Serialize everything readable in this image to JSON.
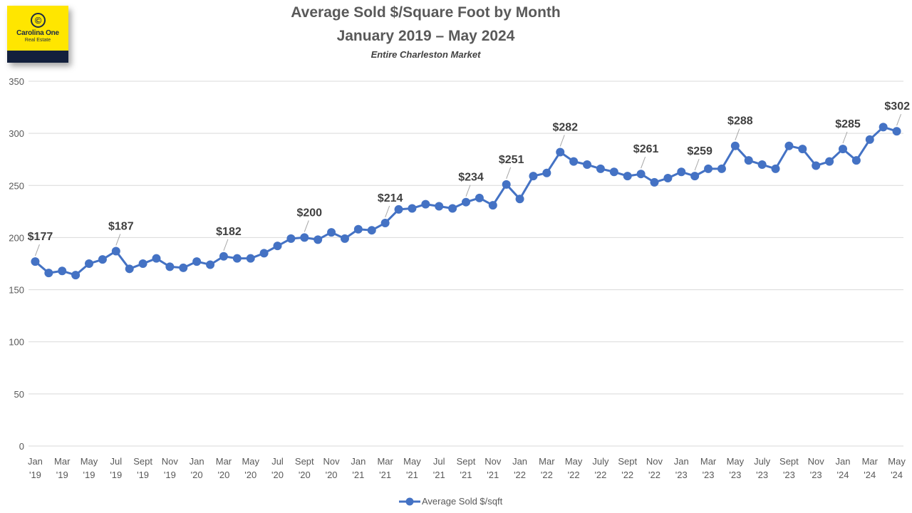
{
  "header": {
    "title_line1": "Average Sold $/Square Foot by Month",
    "title_line2": "January 2019 – May 2024",
    "subtitle": "Entire Charleston Market"
  },
  "logo": {
    "emblem": "©",
    "brand": "Carolina One",
    "sub": "Real Estate"
  },
  "chart_data": {
    "type": "line",
    "title": "Average Sold $/Square Foot by Month",
    "subtitle": "January 2019 – May 2024",
    "ylim": [
      0,
      350
    ],
    "yticks": [
      0,
      50,
      100,
      150,
      200,
      250,
      300,
      350
    ],
    "grid": true,
    "legend_position": "bottom",
    "color": "#4472c4",
    "x": [
      "Jan '19",
      "Feb '19",
      "Mar '19",
      "Apr '19",
      "May '19",
      "Jun '19",
      "Jul '19",
      "Aug '19",
      "Sept '19",
      "Oct '19",
      "Nov '19",
      "Dec '19",
      "Jan '20",
      "Feb '20",
      "Mar '20",
      "Apr '20",
      "May '20",
      "Jun '20",
      "Jul '20",
      "Aug '20",
      "Sept '20",
      "Oct '20",
      "Nov '20",
      "Dec '20",
      "Jan '21",
      "Feb '21",
      "Mar '21",
      "Apr '21",
      "May '21",
      "Jun '21",
      "Jul '21",
      "Aug '21",
      "Sept '21",
      "Oct '21",
      "Nov '21",
      "Dec '21",
      "Jan '22",
      "Feb '22",
      "Mar '22",
      "Apr '22",
      "May '22",
      "Jun '22",
      "July '22",
      "Aug '22",
      "Sept '22",
      "Oct '22",
      "Nov '22",
      "Dec '22",
      "Jan '23",
      "Feb '23",
      "Mar '23",
      "Apr '23",
      "May '23",
      "Jun '23",
      "July '23",
      "Aug '23",
      "Sept '23",
      "Oct '23",
      "Nov '23",
      "Dec '23",
      "Jan '24",
      "Feb '24",
      "Mar '24",
      "Apr '24",
      "May '24"
    ],
    "x_tick_labels": [
      {
        "month": "Jan",
        "year": "'19"
      },
      {
        "month": "Mar",
        "year": "'19"
      },
      {
        "month": "May",
        "year": "'19"
      },
      {
        "month": "Jul",
        "year": "'19"
      },
      {
        "month": "Sept",
        "year": "'19"
      },
      {
        "month": "Nov",
        "year": "'19"
      },
      {
        "month": "Jan",
        "year": "'20"
      },
      {
        "month": "Mar",
        "year": "'20"
      },
      {
        "month": "May",
        "year": "'20"
      },
      {
        "month": "Jul",
        "year": "'20"
      },
      {
        "month": "Sept",
        "year": "'20"
      },
      {
        "month": "Nov",
        "year": "'20"
      },
      {
        "month": "Jan",
        "year": "'21"
      },
      {
        "month": "Mar",
        "year": "'21"
      },
      {
        "month": "May",
        "year": "'21"
      },
      {
        "month": "Jul",
        "year": "'21"
      },
      {
        "month": "Sept",
        "year": "'21"
      },
      {
        "month": "Nov",
        "year": "'21"
      },
      {
        "month": "Jan",
        "year": "'22"
      },
      {
        "month": "Mar",
        "year": "'22"
      },
      {
        "month": "May",
        "year": "'22"
      },
      {
        "month": "July",
        "year": "'22"
      },
      {
        "month": "Sept",
        "year": "'22"
      },
      {
        "month": "Nov",
        "year": "'22"
      },
      {
        "month": "Jan",
        "year": "'23"
      },
      {
        "month": "Mar",
        "year": "'23"
      },
      {
        "month": "May",
        "year": "'23"
      },
      {
        "month": "July",
        "year": "'23"
      },
      {
        "month": "Sept",
        "year": "'23"
      },
      {
        "month": "Nov",
        "year": "'23"
      },
      {
        "month": "Jan",
        "year": "'24"
      },
      {
        "month": "Mar",
        "year": "'24"
      },
      {
        "month": "May",
        "year": "'24"
      }
    ],
    "series": [
      {
        "name": "Average Sold $/sqft",
        "values": [
          177,
          166,
          168,
          164,
          175,
          179,
          187,
          170,
          175,
          180,
          172,
          171,
          177,
          174,
          182,
          180,
          180,
          185,
          192,
          199,
          200,
          198,
          205,
          199,
          208,
          207,
          214,
          227,
          228,
          232,
          230,
          228,
          234,
          238,
          231,
          251,
          237,
          259,
          262,
          282,
          273,
          270,
          266,
          263,
          259,
          261,
          253,
          257,
          263,
          259,
          266,
          266,
          288,
          274,
          270,
          266,
          288,
          285,
          269,
          273,
          285,
          274,
          294,
          306,
          302
        ]
      }
    ],
    "data_labels": [
      {
        "x": "Jan '19",
        "text": "$177"
      },
      {
        "x": "Jul '19",
        "text": "$187"
      },
      {
        "x": "Mar '20",
        "text": "$182"
      },
      {
        "x": "Sept '20",
        "text": "$200"
      },
      {
        "x": "Mar '21",
        "text": "$214"
      },
      {
        "x": "Sept '21",
        "text": "$234"
      },
      {
        "x": "Dec '21",
        "text": "$251"
      },
      {
        "x": "Apr '22",
        "text": "$282"
      },
      {
        "x": "Oct '22",
        "text": "$261"
      },
      {
        "x": "Feb '23",
        "text": "$259"
      },
      {
        "x": "May '23",
        "text": "$288"
      },
      {
        "x": "Jan '24",
        "text": "$285"
      },
      {
        "x": "May '24",
        "text": "$302"
      }
    ]
  },
  "legend": {
    "label": "Average Sold $/sqft"
  }
}
